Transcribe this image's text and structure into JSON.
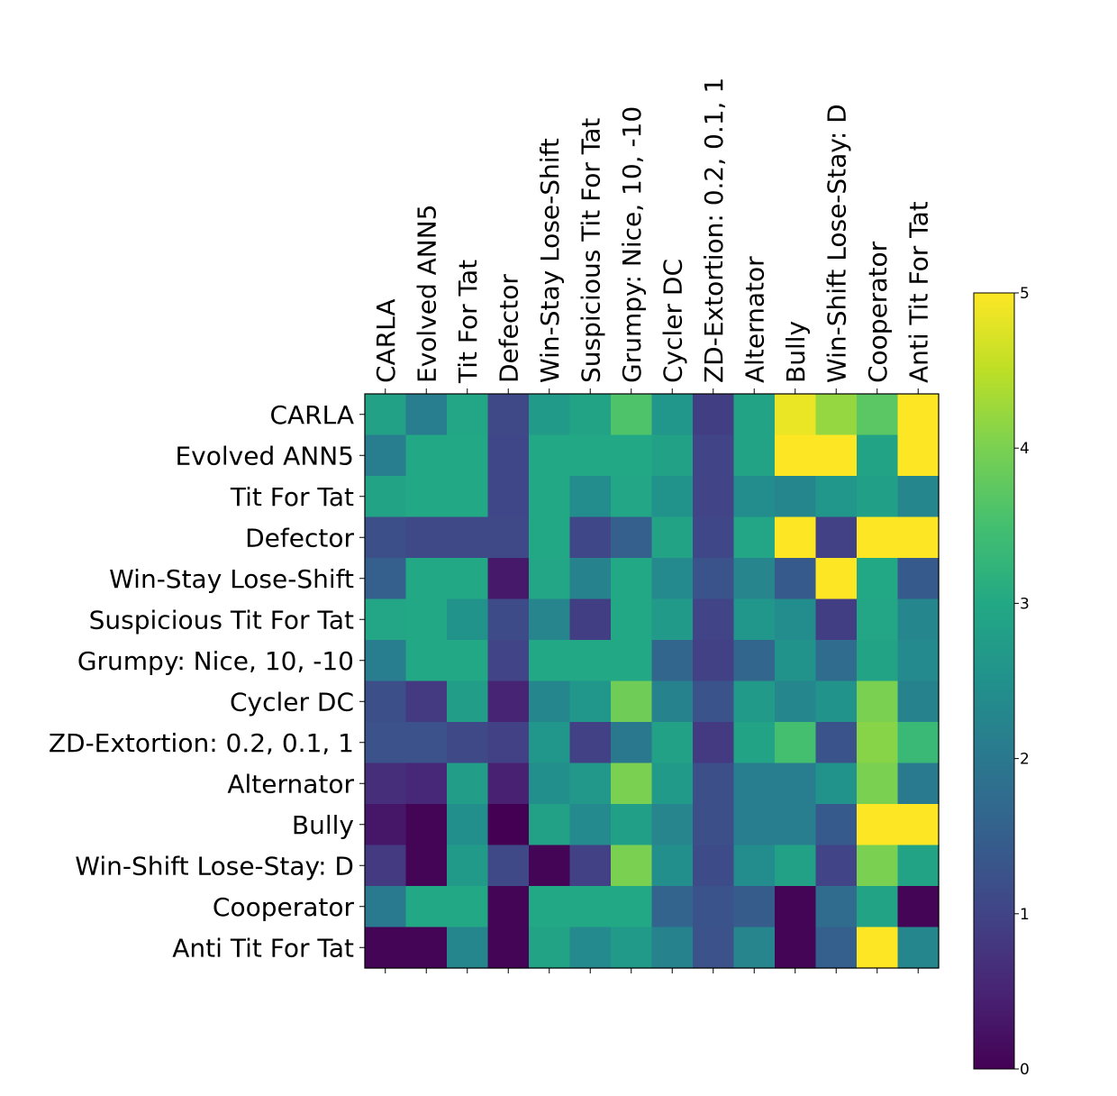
{
  "chart_data": {
    "type": "heatmap",
    "title": "",
    "xlabel": "",
    "ylabel": "",
    "categories": [
      "CARLA",
      "Evolved ANN5",
      "Tit For Tat",
      "Defector",
      "Win-Stay Lose-Shift",
      "Suspicious Tit For Tat",
      "Grumpy: Nice, 10, -10",
      "Cycler DC",
      "ZD-Extortion: 0.2, 0.1, 1",
      "Alternator",
      "Bully",
      "Win-Shift Lose-Stay: D",
      "Cooperator",
      "Anti Tit For Tat"
    ],
    "values": [
      [
        2.85,
        2.1,
        2.95,
        1.1,
        2.7,
        2.9,
        3.6,
        2.6,
        0.9,
        2.9,
        4.85,
        4.2,
        3.7,
        5.0
      ],
      [
        2.1,
        3.0,
        3.0,
        1.05,
        3.0,
        3.0,
        3.0,
        2.85,
        1.0,
        2.9,
        5.0,
        5.0,
        2.9,
        5.0
      ],
      [
        2.9,
        3.0,
        3.0,
        1.05,
        3.0,
        2.4,
        2.95,
        2.55,
        1.0,
        2.4,
        2.3,
        2.6,
        2.8,
        2.3
      ],
      [
        1.2,
        1.1,
        1.1,
        1.1,
        3.0,
        1.05,
        1.5,
        2.9,
        1.05,
        2.95,
        5.0,
        0.95,
        5.0,
        5.0
      ],
      [
        1.5,
        3.0,
        3.0,
        0.35,
        2.95,
        2.2,
        3.0,
        2.35,
        1.3,
        2.25,
        1.4,
        5.0,
        3.0,
        1.4
      ],
      [
        2.95,
        3.0,
        2.55,
        1.15,
        2.25,
        0.9,
        3.0,
        2.7,
        1.0,
        2.6,
        2.4,
        0.9,
        2.95,
        2.3
      ],
      [
        2.1,
        3.0,
        3.0,
        1.0,
        3.0,
        3.0,
        3.0,
        1.65,
        0.95,
        1.65,
        2.55,
        1.75,
        2.9,
        2.35
      ],
      [
        1.2,
        0.85,
        2.75,
        0.5,
        2.3,
        2.6,
        3.9,
        2.2,
        1.3,
        2.7,
        2.3,
        2.55,
        4.0,
        2.2
      ],
      [
        1.25,
        1.25,
        1.1,
        0.95,
        2.6,
        0.95,
        2.0,
        2.85,
        0.85,
        2.9,
        3.5,
        1.3,
        4.1,
        3.35
      ],
      [
        0.65,
        0.55,
        2.75,
        0.45,
        2.45,
        2.65,
        4.0,
        2.7,
        1.2,
        2.1,
        2.1,
        2.55,
        4.0,
        2.05
      ],
      [
        0.3,
        0.05,
        2.45,
        0.0,
        2.85,
        2.35,
        2.8,
        2.25,
        1.2,
        2.1,
        2.1,
        1.4,
        5.0,
        5.0
      ],
      [
        0.85,
        0.05,
        2.7,
        1.1,
        0.05,
        0.95,
        4.0,
        2.45,
        1.15,
        2.4,
        2.85,
        1.0,
        4.0,
        2.9
      ],
      [
        2.05,
        3.0,
        3.0,
        0.05,
        3.0,
        3.0,
        3.0,
        1.6,
        1.3,
        1.45,
        0.05,
        1.75,
        2.9,
        0.05
      ],
      [
        0.05,
        0.05,
        2.3,
        0.05,
        2.9,
        2.35,
        2.7,
        2.2,
        1.25,
        2.25,
        0.05,
        1.5,
        5.0,
        2.3
      ]
    ],
    "colorbar": {
      "min": 0,
      "max": 5,
      "ticks": [
        "0",
        "1",
        "2",
        "3",
        "4",
        "5"
      ]
    },
    "colormap": "viridis",
    "grid": false
  }
}
